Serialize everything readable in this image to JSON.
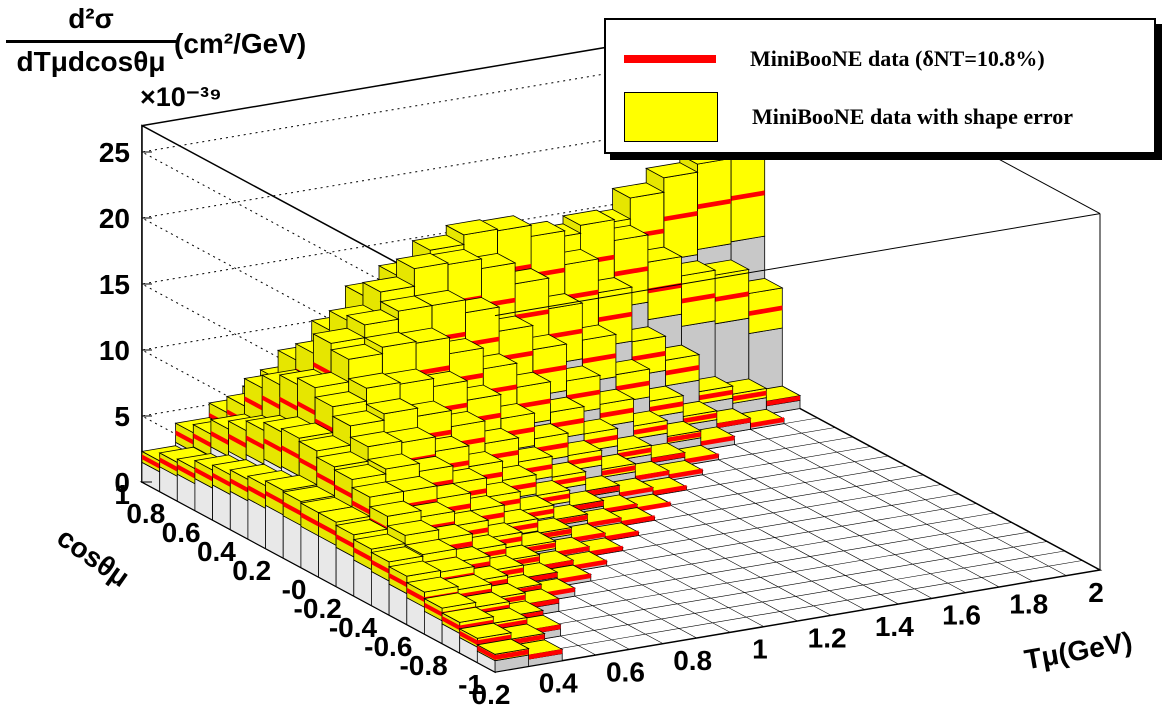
{
  "figure": {
    "y_axis_label_numerator": "d²σ",
    "y_axis_label_denominator": "dTμdcosθμ",
    "y_axis_units": "(cm²/GeV)",
    "y_axis_scale": "×10⁻³⁹",
    "x_axis_label": "Tμ(GeV)",
    "z_axis_label": "cosθμ"
  },
  "legend": {
    "line_label": "MiniBooNE data (δNT=10.8%)",
    "box_label": "MiniBooNE data with shape error"
  },
  "colors": {
    "data_line": "#ff0000",
    "shape_error": "#ffff00",
    "bar_side": "#c8c8c8",
    "floor": "#ffffff",
    "wall": "#ffffff"
  },
  "chart_data": {
    "type": "lego3d",
    "ylim": [
      0,
      27
    ],
    "y_ticks": [
      "0",
      "5",
      "10",
      "15",
      "20",
      "25"
    ],
    "x_tick_labels": [
      "0.2",
      "0.4",
      "0.6",
      "0.8",
      "1",
      "1.2",
      "1.4",
      "1.6",
      "1.8",
      "2"
    ],
    "cos_tick_labels": [
      "1",
      "0.8",
      "0.6",
      "0.4",
      "0.2",
      "-0",
      "-0.2",
      "-0.4",
      "-0.6",
      "-0.8",
      "-1"
    ],
    "xlim": [
      0.2,
      2.0
    ],
    "cos_lim": [
      -1,
      1
    ],
    "x_bin_width": 0.1,
    "cos_bin_width": 0.1,
    "bins": [
      {
        "cos": 0.95,
        "values": [
          1.9,
          3.3,
          4.2,
          4.9,
          5.6,
          6.3,
          6.9,
          7.5,
          8.3,
          8.6,
          8.7,
          10.8,
          11.0,
          12.0,
          13.3,
          14.2,
          14.7,
          14.9
        ]
      },
      {
        "cos": 0.85,
        "values": [
          2.4,
          3.8,
          5.2,
          6.5,
          7.3,
          8.6,
          9.3,
          10.4,
          11.3,
          11.6,
          12.6,
          12.4,
          12.9,
          11.6,
          9.9,
          8.7,
          8.4,
          6.9
        ]
      },
      {
        "cos": 0.75,
        "values": [
          2.6,
          4.7,
          6.9,
          8.3,
          9.8,
          11.6,
          12.5,
          13.7,
          14.3,
          14.2,
          13.5,
          11.4,
          9.3,
          5.9,
          4.4,
          2.1,
          1.6,
          0.8
        ]
      },
      {
        "cos": 0.65,
        "values": [
          3.1,
          5.2,
          7.7,
          9.3,
          11.0,
          12.4,
          13.5,
          13.4,
          12.8,
          11.5,
          9.6,
          7.3,
          4.8,
          2.8,
          1.5,
          0.7,
          0.3,
          0.0
        ]
      },
      {
        "cos": 0.55,
        "values": [
          3.4,
          5.8,
          8.3,
          10.5,
          11.3,
          11.8,
          11.8,
          11.0,
          9.5,
          8.0,
          5.7,
          3.9,
          2.2,
          1.2,
          0.5,
          0.0,
          0.0,
          0.0
        ]
      },
      {
        "cos": 0.45,
        "values": [
          3.7,
          6.3,
          8.7,
          10.1,
          10.5,
          10.4,
          9.4,
          8.1,
          6.6,
          4.7,
          3.0,
          1.6,
          0.8,
          0.3,
          0.0,
          0.0,
          0.0,
          0.0
        ]
      },
      {
        "cos": 0.35,
        "values": [
          3.9,
          6.5,
          8.1,
          8.9,
          8.8,
          8.3,
          7.1,
          5.6,
          4.0,
          2.6,
          1.4,
          0.6,
          0.3,
          0.0,
          0.0,
          0.0,
          0.0,
          0.0
        ]
      },
      {
        "cos": 0.25,
        "values": [
          4.2,
          6.3,
          7.5,
          7.9,
          7.4,
          6.4,
          5.0,
          3.5,
          2.2,
          1.0,
          0.5,
          0.2,
          0.0,
          0.0,
          0.0,
          0.0,
          0.0,
          0.0
        ]
      },
      {
        "cos": 0.15,
        "values": [
          4.1,
          5.9,
          6.8,
          6.7,
          5.8,
          4.5,
          3.3,
          2.0,
          1.0,
          0.4,
          0.1,
          0.0,
          0.0,
          0.0,
          0.0,
          0.0,
          0.0,
          0.0
        ]
      },
      {
        "cos": 0.05,
        "values": [
          4.0,
          5.7,
          6.0,
          5.5,
          4.4,
          3.2,
          2.0,
          1.1,
          0.5,
          0.2,
          0.0,
          0.0,
          0.0,
          0.0,
          0.0,
          0.0,
          0.0,
          0.0
        ]
      },
      {
        "cos": -0.05,
        "values": [
          4.0,
          5.2,
          5.2,
          4.4,
          3.3,
          2.1,
          1.2,
          0.5,
          0.2,
          0.0,
          0.0,
          0.0,
          0.0,
          0.0,
          0.0,
          0.0,
          0.0,
          0.0
        ]
      },
      {
        "cos": -0.15,
        "values": [
          3.8,
          4.6,
          4.2,
          3.3,
          2.2,
          1.3,
          0.6,
          0.2,
          0.0,
          0.0,
          0.0,
          0.0,
          0.0,
          0.0,
          0.0,
          0.0,
          0.0,
          0.0
        ]
      },
      {
        "cos": -0.25,
        "values": [
          3.5,
          4.0,
          3.4,
          2.4,
          1.4,
          0.7,
          0.3,
          0.0,
          0.0,
          0.0,
          0.0,
          0.0,
          0.0,
          0.0,
          0.0,
          0.0,
          0.0,
          0.0
        ]
      },
      {
        "cos": -0.35,
        "values": [
          3.3,
          3.4,
          2.6,
          1.7,
          0.9,
          0.4,
          0.0,
          0.0,
          0.0,
          0.0,
          0.0,
          0.0,
          0.0,
          0.0,
          0.0,
          0.0,
          0.0,
          0.0
        ]
      },
      {
        "cos": -0.45,
        "values": [
          3.0,
          2.9,
          2.0,
          1.1,
          0.5,
          0.0,
          0.0,
          0.0,
          0.0,
          0.0,
          0.0,
          0.0,
          0.0,
          0.0,
          0.0,
          0.0,
          0.0,
          0.0
        ]
      },
      {
        "cos": -0.55,
        "values": [
          2.6,
          2.4,
          1.5,
          0.8,
          0.0,
          0.0,
          0.0,
          0.0,
          0.0,
          0.0,
          0.0,
          0.0,
          0.0,
          0.0,
          0.0,
          0.0,
          0.0,
          0.0
        ]
      },
      {
        "cos": -0.65,
        "values": [
          2.2,
          1.9,
          1.0,
          0.0,
          0.0,
          0.0,
          0.0,
          0.0,
          0.0,
          0.0,
          0.0,
          0.0,
          0.0,
          0.0,
          0.0,
          0.0,
          0.0,
          0.0
        ]
      },
      {
        "cos": -0.75,
        "values": [
          1.9,
          1.5,
          0.7,
          0.0,
          0.0,
          0.0,
          0.0,
          0.0,
          0.0,
          0.0,
          0.0,
          0.0,
          0.0,
          0.0,
          0.0,
          0.0,
          0.0,
          0.0
        ]
      },
      {
        "cos": -0.85,
        "values": [
          1.5,
          1.1,
          0.0,
          0.0,
          0.0,
          0.0,
          0.0,
          0.0,
          0.0,
          0.0,
          0.0,
          0.0,
          0.0,
          0.0,
          0.0,
          0.0,
          0.0,
          0.0
        ]
      },
      {
        "cos": -0.95,
        "values": [
          1.1,
          0.7,
          0.0,
          0.0,
          0.0,
          0.0,
          0.0,
          0.0,
          0.0,
          0.0,
          0.0,
          0.0,
          0.0,
          0.0,
          0.0,
          0.0,
          0.0,
          0.0
        ]
      }
    ],
    "shape_error_fraction": 0.22,
    "grid": true
  }
}
